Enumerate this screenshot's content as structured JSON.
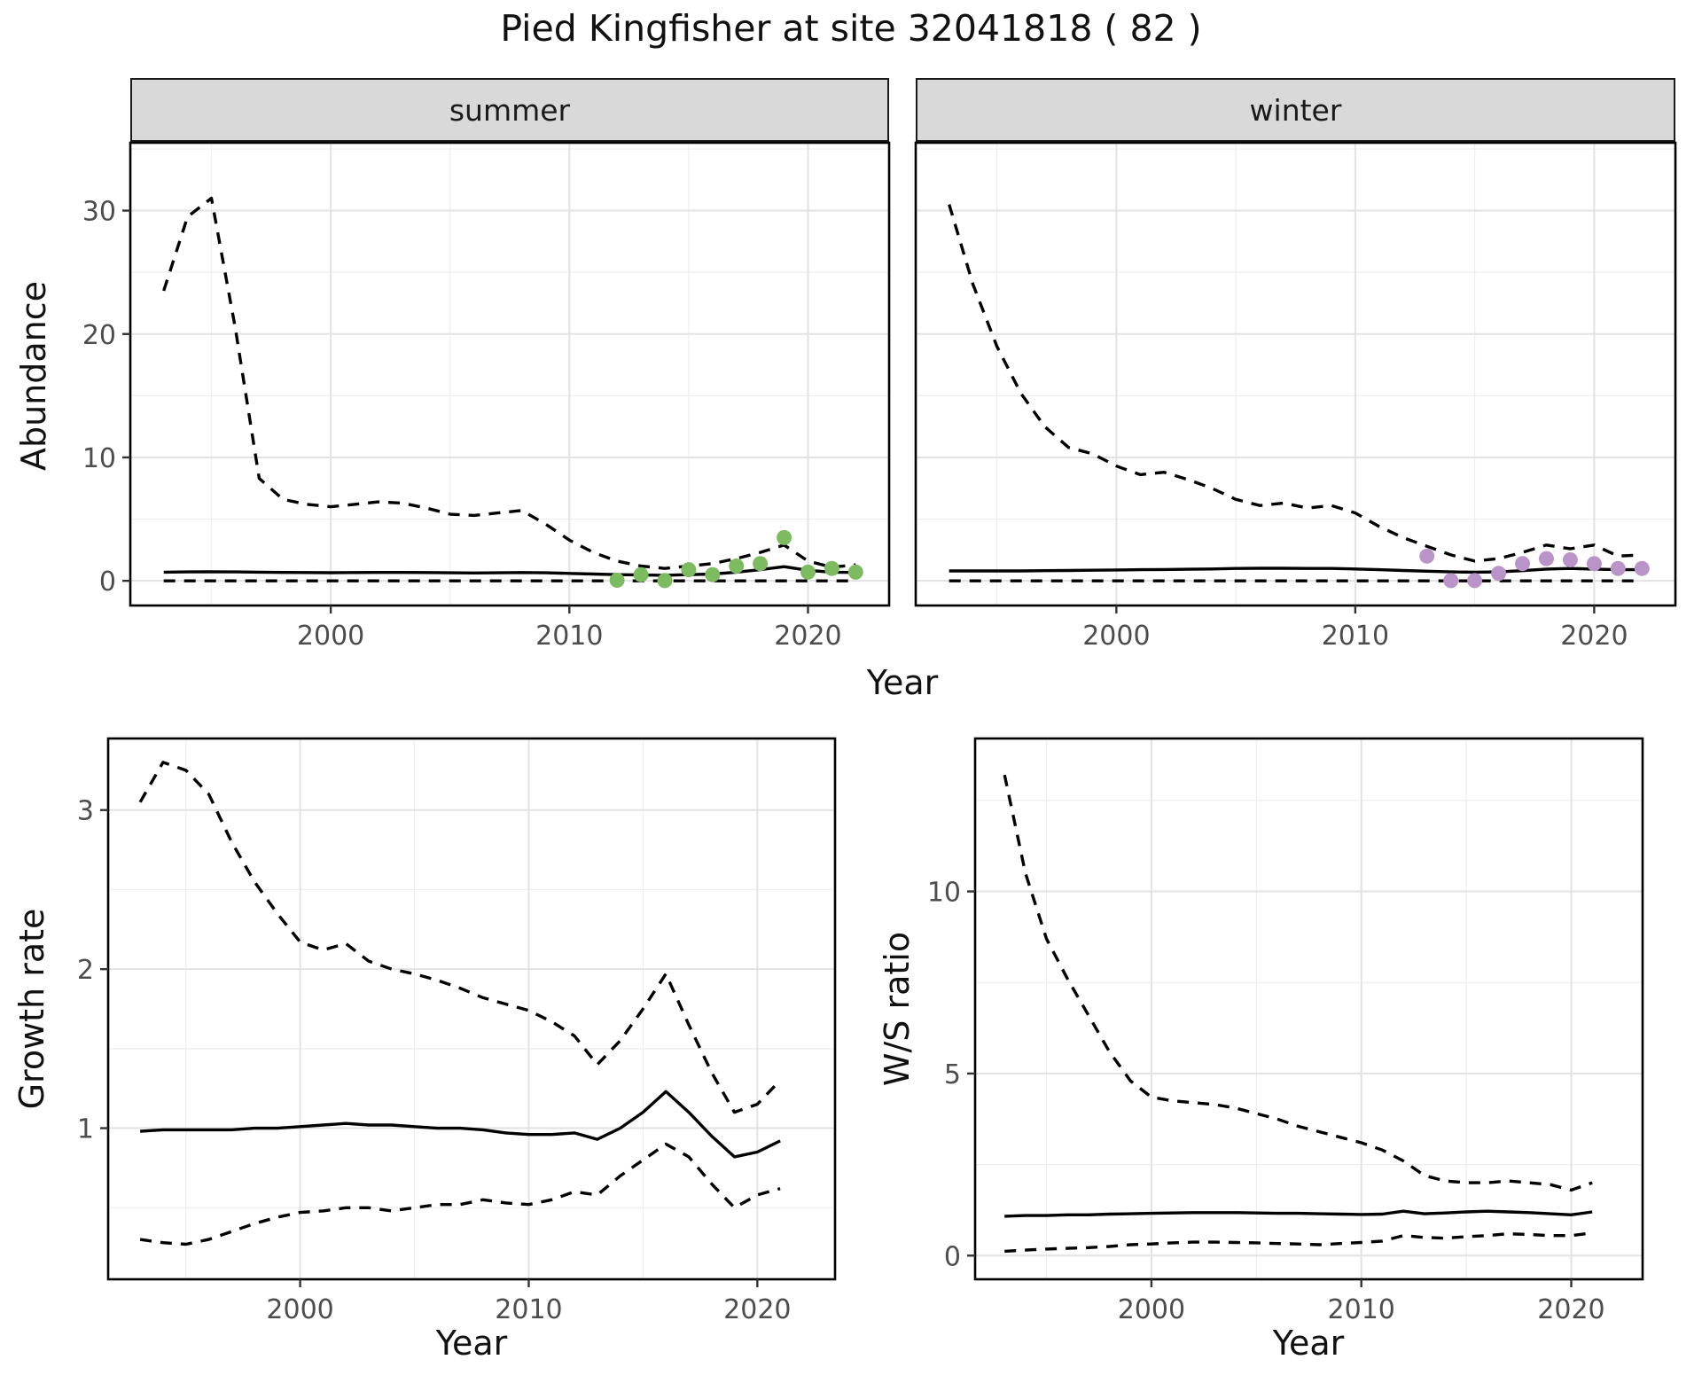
{
  "title": "Pied Kingfisher at site 32041818 ( 82 )",
  "style": {
    "line_color": "#000000",
    "border_color": "#000000",
    "grid_major": "#e2e2e2",
    "grid_minor": "#eeeeee",
    "tick_color": "#333333",
    "tick_label_color": "#4d4d4d",
    "strip_bg": "#d9d9d9",
    "summer_point_color": "#7CBB5F",
    "winter_point_color": "#BA93C9"
  },
  "chart_data": [
    {
      "type": "line",
      "facet": "summer",
      "ylabel": "Abundance",
      "xlabel": "Year",
      "xlim": [
        1991.6,
        2023.4
      ],
      "ylim": [
        -2,
        35.5
      ],
      "xticks": [
        2000,
        2010,
        2020
      ],
      "xminor": [
        1995,
        2005,
        2015
      ],
      "yticks": [
        0,
        10,
        20,
        30
      ],
      "yminor": [
        5,
        15,
        25,
        35
      ],
      "legend": "none",
      "series": [
        {
          "name": "upper_95ci",
          "linetype": "dashed",
          "years": [
            1993,
            1994,
            1995,
            1996,
            1997,
            1998,
            1999,
            2000,
            2001,
            2002,
            2003,
            2004,
            2005,
            2006,
            2007,
            2008,
            2009,
            2010,
            2011,
            2012,
            2013,
            2014,
            2015,
            2016,
            2017,
            2018,
            2019,
            2020,
            2021,
            2022
          ],
          "values": [
            23.5,
            29.5,
            31,
            20.5,
            8.3,
            6.6,
            6.2,
            6.0,
            6.2,
            6.4,
            6.3,
            5.9,
            5.4,
            5.3,
            5.5,
            5.7,
            4.6,
            3.3,
            2.3,
            1.6,
            1.2,
            1.0,
            1.2,
            1.4,
            1.8,
            2.3,
            2.9,
            1.6,
            1.1,
            1.3
          ]
        },
        {
          "name": "median",
          "linetype": "solid",
          "years": [
            1993,
            1994,
            1995,
            1996,
            1997,
            1998,
            1999,
            2000,
            2001,
            2002,
            2003,
            2004,
            2005,
            2006,
            2007,
            2008,
            2009,
            2010,
            2011,
            2012,
            2013,
            2014,
            2015,
            2016,
            2017,
            2018,
            2019,
            2020,
            2021,
            2022
          ],
          "values": [
            0.7,
            0.72,
            0.73,
            0.72,
            0.7,
            0.68,
            0.67,
            0.66,
            0.67,
            0.68,
            0.68,
            0.67,
            0.65,
            0.64,
            0.65,
            0.67,
            0.65,
            0.6,
            0.55,
            0.5,
            0.47,
            0.45,
            0.5,
            0.55,
            0.7,
            0.9,
            1.15,
            0.85,
            0.7,
            0.68
          ]
        },
        {
          "name": "lower_95ci",
          "linetype": "dashed",
          "years": [
            1993,
            1994,
            1995,
            1996,
            1997,
            1998,
            1999,
            2000,
            2001,
            2002,
            2003,
            2004,
            2005,
            2006,
            2007,
            2008,
            2009,
            2010,
            2011,
            2012,
            2013,
            2014,
            2015,
            2016,
            2017,
            2018,
            2019,
            2020,
            2021,
            2022
          ],
          "values": [
            0,
            0,
            0,
            0,
            0,
            0,
            0,
            0,
            0,
            0,
            0,
            0,
            0,
            0,
            0,
            0,
            0,
            0,
            0,
            0,
            0,
            0,
            0,
            0,
            0,
            0,
            0,
            0,
            0,
            0
          ]
        },
        {
          "name": "observed_counts",
          "linetype": "points",
          "color": "#7CBB5F",
          "years": [
            2012,
            2013,
            2014,
            2015,
            2016,
            2017,
            2018,
            2019,
            2020,
            2021,
            2022
          ],
          "values": [
            0.05,
            0.5,
            0.02,
            0.9,
            0.5,
            1.2,
            1.4,
            3.5,
            0.7,
            1.0,
            0.7
          ]
        }
      ]
    },
    {
      "type": "line",
      "facet": "winter",
      "ylabel": "Abundance",
      "xlabel": "Year",
      "xlim": [
        1991.6,
        2023.4
      ],
      "ylim": [
        -2,
        35.5
      ],
      "xticks": [
        2000,
        2010,
        2020
      ],
      "xminor": [
        1995,
        2005,
        2015
      ],
      "yticks": [
        0,
        10,
        20,
        30
      ],
      "yminor": [
        5,
        15,
        25,
        35
      ],
      "legend": "none",
      "series": [
        {
          "name": "upper_95ci",
          "linetype": "dashed",
          "years": [
            1993,
            1994,
            1995,
            1996,
            1997,
            1998,
            1999,
            2000,
            2001,
            2002,
            2003,
            2004,
            2005,
            2006,
            2007,
            2008,
            2009,
            2010,
            2011,
            2012,
            2013,
            2014,
            2015,
            2016,
            2017,
            2018,
            2019,
            2020,
            2021,
            2022
          ],
          "values": [
            30.5,
            24,
            19,
            15.2,
            12.5,
            10.8,
            10.3,
            9.3,
            8.6,
            8.8,
            8.2,
            7.5,
            6.6,
            6.1,
            6.3,
            5.9,
            6.1,
            5.5,
            4.4,
            3.5,
            2.8,
            2.1,
            1.6,
            1.8,
            2.3,
            2.9,
            2.6,
            2.9,
            2.0,
            2.1
          ]
        },
        {
          "name": "median",
          "linetype": "solid",
          "years": [
            1993,
            1994,
            1995,
            1996,
            1997,
            1998,
            1999,
            2000,
            2001,
            2002,
            2003,
            2004,
            2005,
            2006,
            2007,
            2008,
            2009,
            2010,
            2011,
            2012,
            2013,
            2014,
            2015,
            2016,
            2017,
            2018,
            2019,
            2020,
            2021,
            2022
          ],
          "values": [
            0.8,
            0.8,
            0.8,
            0.8,
            0.82,
            0.84,
            0.86,
            0.88,
            0.9,
            0.92,
            0.94,
            0.96,
            1.0,
            1.02,
            1.02,
            1.0,
            1.0,
            0.96,
            0.9,
            0.84,
            0.78,
            0.72,
            0.7,
            0.72,
            0.82,
            0.95,
            1.0,
            0.95,
            0.9,
            0.9
          ]
        },
        {
          "name": "lower_95ci",
          "linetype": "dashed",
          "years": [
            1993,
            1994,
            1995,
            1996,
            1997,
            1998,
            1999,
            2000,
            2001,
            2002,
            2003,
            2004,
            2005,
            2006,
            2007,
            2008,
            2009,
            2010,
            2011,
            2012,
            2013,
            2014,
            2015,
            2016,
            2017,
            2018,
            2019,
            2020,
            2021,
            2022
          ],
          "values": [
            0,
            0,
            0,
            0,
            0,
            0,
            0,
            0,
            0,
            0,
            0,
            0,
            0,
            0,
            0,
            0,
            0,
            0,
            0,
            0,
            0,
            0,
            0,
            0,
            0,
            0,
            0,
            0,
            0,
            0
          ]
        },
        {
          "name": "observed_counts",
          "linetype": "points",
          "color": "#BA93C9",
          "years": [
            2013,
            2014,
            2015,
            2016,
            2017,
            2018,
            2019,
            2020,
            2021,
            2022
          ],
          "values": [
            2.0,
            0.02,
            0.02,
            0.6,
            1.4,
            1.8,
            1.7,
            1.4,
            1.0,
            1.0
          ]
        }
      ]
    },
    {
      "type": "line",
      "facet": null,
      "ylabel": "Growth rate",
      "xlabel": "Year",
      "xlim": [
        1991.6,
        2023.4
      ],
      "ylim": [
        0.05,
        3.45
      ],
      "xticks": [
        2000,
        2010,
        2020
      ],
      "xminor": [
        1995,
        2005,
        2015
      ],
      "yticks": [
        1,
        2,
        3
      ],
      "yminor": [
        0.5,
        1.5,
        2.5
      ],
      "legend": "none",
      "series": [
        {
          "name": "upper_95ci",
          "linetype": "dashed",
          "years": [
            1993,
            1994,
            1995,
            1996,
            1997,
            1998,
            1999,
            2000,
            2001,
            2002,
            2003,
            2004,
            2005,
            2006,
            2007,
            2008,
            2009,
            2010,
            2011,
            2012,
            2013,
            2014,
            2015,
            2016,
            2017,
            2018,
            2019,
            2020,
            2021
          ],
          "values": [
            3.05,
            3.3,
            3.25,
            3.1,
            2.8,
            2.55,
            2.35,
            2.17,
            2.12,
            2.16,
            2.05,
            2.0,
            1.97,
            1.93,
            1.88,
            1.82,
            1.78,
            1.74,
            1.67,
            1.58,
            1.4,
            1.55,
            1.75,
            1.97,
            1.65,
            1.35,
            1.1,
            1.15,
            1.3
          ]
        },
        {
          "name": "median",
          "linetype": "solid",
          "years": [
            1993,
            1994,
            1995,
            1996,
            1997,
            1998,
            1999,
            2000,
            2001,
            2002,
            2003,
            2004,
            2005,
            2006,
            2007,
            2008,
            2009,
            2010,
            2011,
            2012,
            2013,
            2014,
            2015,
            2016,
            2017,
            2018,
            2019,
            2020,
            2021
          ],
          "values": [
            0.98,
            0.99,
            0.99,
            0.99,
            0.99,
            1.0,
            1.0,
            1.01,
            1.02,
            1.03,
            1.02,
            1.02,
            1.01,
            1.0,
            1.0,
            0.99,
            0.97,
            0.96,
            0.96,
            0.97,
            0.93,
            1.0,
            1.1,
            1.23,
            1.1,
            0.95,
            0.82,
            0.85,
            0.92
          ]
        },
        {
          "name": "lower_95ci",
          "linetype": "dashed",
          "years": [
            1993,
            1994,
            1995,
            1996,
            1997,
            1998,
            1999,
            2000,
            2001,
            2002,
            2003,
            2004,
            2005,
            2006,
            2007,
            2008,
            2009,
            2010,
            2011,
            2012,
            2013,
            2014,
            2015,
            2016,
            2017,
            2018,
            2019,
            2020,
            2021
          ],
          "values": [
            0.3,
            0.28,
            0.27,
            0.3,
            0.35,
            0.4,
            0.44,
            0.47,
            0.48,
            0.5,
            0.5,
            0.48,
            0.5,
            0.52,
            0.52,
            0.55,
            0.53,
            0.52,
            0.55,
            0.6,
            0.58,
            0.7,
            0.8,
            0.9,
            0.82,
            0.65,
            0.5,
            0.58,
            0.62
          ]
        }
      ]
    },
    {
      "type": "line",
      "facet": null,
      "ylabel": "W/S ratio",
      "xlabel": "Year",
      "xlim": [
        1991.6,
        2023.4
      ],
      "ylim": [
        -0.65,
        14.2
      ],
      "xticks": [
        2000,
        2010,
        2020
      ],
      "xminor": [
        1995,
        2005,
        2015
      ],
      "yticks": [
        0,
        5,
        10
      ],
      "yminor": [
        2.5,
        7.5,
        12.5
      ],
      "legend": "none",
      "series": [
        {
          "name": "upper_95ci",
          "linetype": "dashed",
          "years": [
            1993,
            1994,
            1995,
            1996,
            1997,
            1998,
            1999,
            2000,
            2001,
            2002,
            2003,
            2004,
            2005,
            2006,
            2007,
            2008,
            2009,
            2010,
            2011,
            2012,
            2013,
            2014,
            2015,
            2016,
            2017,
            2018,
            2019,
            2020,
            2021
          ],
          "values": [
            13.2,
            10.5,
            8.7,
            7.6,
            6.6,
            5.6,
            4.8,
            4.35,
            4.25,
            4.2,
            4.15,
            4.05,
            3.9,
            3.75,
            3.55,
            3.4,
            3.25,
            3.1,
            2.9,
            2.6,
            2.2,
            2.05,
            2.0,
            2.0,
            2.05,
            2.0,
            1.95,
            1.8,
            2.0
          ]
        },
        {
          "name": "median",
          "linetype": "solid",
          "years": [
            1993,
            1994,
            1995,
            1996,
            1997,
            1998,
            1999,
            2000,
            2001,
            2002,
            2003,
            2004,
            2005,
            2006,
            2007,
            2008,
            2009,
            2010,
            2011,
            2012,
            2013,
            2014,
            2015,
            2016,
            2017,
            2018,
            2019,
            2020,
            2021
          ],
          "values": [
            1.08,
            1.1,
            1.1,
            1.12,
            1.12,
            1.14,
            1.15,
            1.16,
            1.17,
            1.18,
            1.18,
            1.18,
            1.17,
            1.16,
            1.16,
            1.15,
            1.14,
            1.13,
            1.14,
            1.22,
            1.15,
            1.17,
            1.2,
            1.22,
            1.2,
            1.18,
            1.15,
            1.12,
            1.2
          ]
        },
        {
          "name": "lower_95ci",
          "linetype": "dashed",
          "years": [
            1993,
            1994,
            1995,
            1996,
            1997,
            1998,
            1999,
            2000,
            2001,
            2002,
            2003,
            2004,
            2005,
            2006,
            2007,
            2008,
            2009,
            2010,
            2011,
            2012,
            2013,
            2014,
            2015,
            2016,
            2017,
            2018,
            2019,
            2020,
            2021
          ],
          "values": [
            0.12,
            0.15,
            0.18,
            0.2,
            0.22,
            0.25,
            0.3,
            0.32,
            0.35,
            0.37,
            0.37,
            0.36,
            0.35,
            0.33,
            0.32,
            0.3,
            0.33,
            0.36,
            0.4,
            0.55,
            0.5,
            0.48,
            0.52,
            0.55,
            0.6,
            0.58,
            0.55,
            0.55,
            0.62
          ]
        }
      ]
    }
  ]
}
